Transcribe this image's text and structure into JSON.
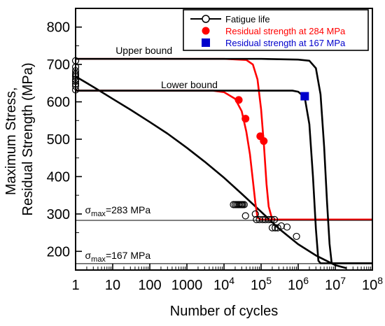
{
  "chart_data": {
    "type": "line",
    "title": "",
    "xlabel": "Number of cycles",
    "ylabel": [
      "Maximum Stress,",
      "Residual Strength (MPa)"
    ],
    "xscale": "log",
    "xlim": [
      1,
      100000000
    ],
    "ylim": [
      150,
      850
    ],
    "x_ticks": [
      1,
      10,
      100,
      1000,
      10000,
      100000,
      1000000,
      10000000,
      100000000
    ],
    "x_tick_labels": [
      {
        "base": "1",
        "exp": ""
      },
      {
        "base": "10",
        "exp": ""
      },
      {
        "base": "100",
        "exp": ""
      },
      {
        "base": "1000",
        "exp": ""
      },
      {
        "base": "10",
        "exp": "4"
      },
      {
        "base": "10",
        "exp": "5"
      },
      {
        "base": "10",
        "exp": "6"
      },
      {
        "base": "10",
        "exp": "7"
      },
      {
        "base": "10",
        "exp": "8"
      }
    ],
    "y_ticks": [
      200,
      300,
      400,
      500,
      600,
      700,
      800
    ],
    "grid": false,
    "legend_position": "top-right",
    "legend": [
      {
        "label": "Fatigue life",
        "marker": "open-circle",
        "line": true,
        "color": "#000000"
      },
      {
        "label": "Residual strength at  284 MPa",
        "marker": "filled-circle",
        "line": false,
        "color": "#ff0000"
      },
      {
        "label": "Residual strength at 167 MPa",
        "marker": "filled-square",
        "line": false,
        "color": "#0000cc"
      }
    ],
    "annotations": [
      {
        "text": "Upper bound",
        "x": 12,
        "y": 728
      },
      {
        "text": "Lower bound",
        "x": 200,
        "y": 637
      },
      {
        "sym": "σ",
        "sub": "max",
        "rest": "=283 MPa",
        "x": 1.8,
        "y": 302
      },
      {
        "sym": "σ",
        "sub": "max",
        "rest": "=167 MPa",
        "x": 1.8,
        "y": 180
      }
    ],
    "series": [
      {
        "name": "Fatigue life",
        "kind": "scatter",
        "marker": "open-circle",
        "color": "#000000",
        "points": [
          [
            1,
            710
          ],
          [
            1,
            693
          ],
          [
            1,
            683
          ],
          [
            1,
            676
          ],
          [
            1,
            672
          ],
          [
            1,
            667
          ],
          [
            1,
            660
          ],
          [
            1,
            655
          ],
          [
            1,
            648
          ],
          [
            1,
            642
          ],
          [
            1,
            632
          ],
          [
            18000,
            325
          ],
          [
            20000,
            325
          ],
          [
            22000,
            325
          ],
          [
            24000,
            325
          ],
          [
            26000,
            325
          ],
          [
            28000,
            325
          ],
          [
            30000,
            325
          ],
          [
            32000,
            325
          ],
          [
            35000,
            325
          ],
          [
            38000,
            295
          ],
          [
            70000,
            300
          ],
          [
            75000,
            285
          ],
          [
            90000,
            285
          ],
          [
            110000,
            285
          ],
          [
            130000,
            285
          ],
          [
            160000,
            285
          ],
          [
            190000,
            285
          ],
          [
            230000,
            285
          ],
          [
            200000,
            263
          ],
          [
            240000,
            263
          ],
          [
            280000,
            263
          ],
          [
            350000,
            268
          ],
          [
            500000,
            265
          ],
          [
            900000,
            240
          ]
        ]
      },
      {
        "name": "Residual strength at  284 MPa",
        "kind": "scatter",
        "marker": "filled-circle",
        "color": "#ff0000",
        "points": [
          [
            25000,
            605
          ],
          [
            38000,
            555
          ],
          [
            95000,
            508
          ],
          [
            118000,
            495
          ]
        ]
      },
      {
        "name": "Residual strength at 167 MPa",
        "kind": "scatter",
        "marker": "filled-square",
        "color": "#0000cc",
        "points": [
          [
            1500000,
            615
          ]
        ]
      },
      {
        "name": "Fatigue life S-N curve",
        "kind": "line",
        "color": "#000000",
        "points": [
          [
            1,
            668
          ],
          [
            3,
            640
          ],
          [
            10,
            608
          ],
          [
            30,
            579
          ],
          [
            100,
            546
          ],
          [
            300,
            515
          ],
          [
            1000,
            477
          ],
          [
            3000,
            440
          ],
          [
            10000,
            397
          ],
          [
            30000,
            354
          ],
          [
            100000,
            306
          ],
          [
            300000,
            261
          ],
          [
            1000000,
            219
          ],
          [
            3000000,
            189
          ],
          [
            10000000,
            163
          ],
          [
            20000000,
            155
          ]
        ]
      },
      {
        "name": "Residual strength curve (284 MPa, lower)",
        "kind": "line",
        "color": "#ff0000",
        "points": [
          [
            1,
            630
          ],
          [
            1000,
            630
          ],
          [
            5000,
            630
          ],
          [
            10000,
            626
          ],
          [
            20000,
            608
          ],
          [
            30000,
            575
          ],
          [
            40000,
            520
          ],
          [
            50000,
            460
          ],
          [
            60000,
            390
          ],
          [
            70000,
            330
          ],
          [
            80000,
            290
          ],
          [
            100000,
            285
          ],
          [
            100000000,
            285
          ]
        ]
      },
      {
        "name": "Residual strength curve (284 MPa, upper)",
        "kind": "line",
        "color": "#ff0000",
        "points": [
          [
            1,
            715
          ],
          [
            10000,
            715
          ],
          [
            40000,
            712
          ],
          [
            60000,
            700
          ],
          [
            80000,
            660
          ],
          [
            100000,
            580
          ],
          [
            120000,
            480
          ],
          [
            140000,
            380
          ],
          [
            160000,
            320
          ],
          [
            200000,
            285
          ],
          [
            100000000,
            285
          ]
        ]
      },
      {
        "name": "Residual strength curve (167 MPa, lower)",
        "kind": "line",
        "color": "#000000",
        "points": [
          [
            1,
            630
          ],
          [
            100000,
            630
          ],
          [
            700000,
            630
          ],
          [
            1000000,
            627
          ],
          [
            1500000,
            612
          ],
          [
            2000000,
            540
          ],
          [
            2500000,
            400
          ],
          [
            3000000,
            260
          ],
          [
            3500000,
            175
          ],
          [
            4000000,
            168
          ],
          [
            100000000,
            168
          ]
        ]
      },
      {
        "name": "Residual strength curve (167 MPa, upper)",
        "kind": "line",
        "color": "#000000",
        "points": [
          [
            1,
            715
          ],
          [
            100000,
            715
          ],
          [
            1000000,
            713
          ],
          [
            2000000,
            710
          ],
          [
            3000000,
            690
          ],
          [
            4000000,
            620
          ],
          [
            5000000,
            480
          ],
          [
            6000000,
            330
          ],
          [
            7000000,
            220
          ],
          [
            8000000,
            168
          ],
          [
            100000000,
            168
          ]
        ]
      },
      {
        "name": "σmax = 283 MPa",
        "kind": "hline",
        "color": "#000000",
        "y": 283
      },
      {
        "name": "σmax = 167 MPa",
        "kind": "hline",
        "color": "#000000",
        "y": 167
      }
    ]
  }
}
